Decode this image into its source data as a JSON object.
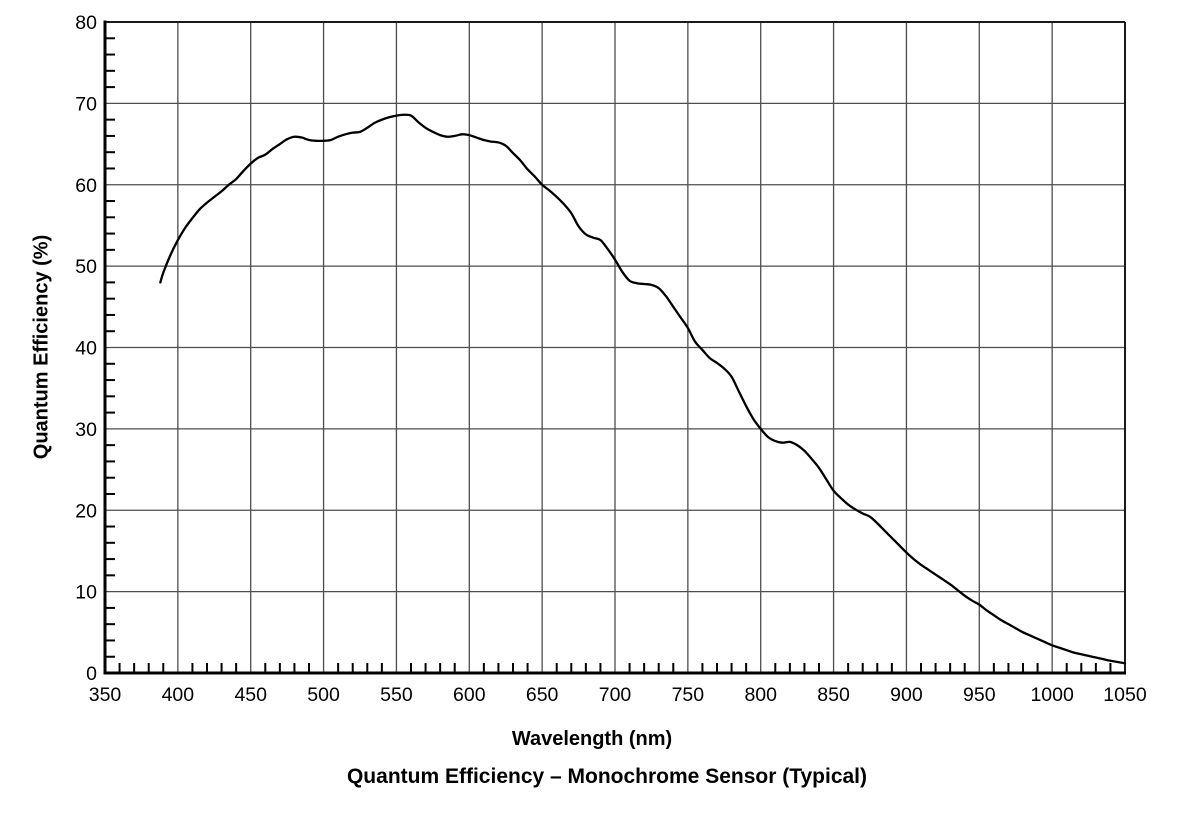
{
  "figure": {
    "background": "#ffffff"
  },
  "chart_data": {
    "type": "line",
    "title": "Quantum Efficiency – Monochrome Sensor (Typical)",
    "xlabel": "Wavelength (nm)",
    "ylabel": "Quantum Efficiency (%)",
    "xlim": [
      350,
      1050
    ],
    "ylim": [
      0,
      80
    ],
    "x_ticks": [
      350,
      400,
      450,
      500,
      550,
      600,
      650,
      700,
      750,
      800,
      850,
      900,
      950,
      1000,
      1050
    ],
    "y_ticks": [
      0,
      10,
      20,
      30,
      40,
      50,
      60,
      70,
      80
    ],
    "x_minor_step": 10,
    "y_minor_step": 2,
    "grid": true,
    "legend": "none",
    "colors": {
      "line": "#000000",
      "grid": "#4d4d4d",
      "axis": "#000000",
      "text": "#000000",
      "background": "#ffffff"
    },
    "series": [
      {
        "name": "Monochrome sensor quantum efficiency",
        "x": [
          388,
          390,
          395,
          400,
          405,
          410,
          415,
          420,
          425,
          430,
          435,
          440,
          445,
          450,
          455,
          460,
          465,
          470,
          475,
          480,
          485,
          490,
          495,
          500,
          505,
          510,
          515,
          520,
          525,
          530,
          535,
          540,
          545,
          550,
          555,
          560,
          565,
          570,
          575,
          580,
          585,
          590,
          595,
          600,
          605,
          610,
          615,
          620,
          625,
          630,
          635,
          640,
          645,
          650,
          655,
          660,
          665,
          670,
          675,
          680,
          685,
          690,
          695,
          700,
          705,
          710,
          715,
          720,
          725,
          730,
          735,
          740,
          745,
          750,
          755,
          760,
          765,
          770,
          775,
          780,
          785,
          790,
          795,
          800,
          805,
          810,
          815,
          820,
          825,
          830,
          835,
          840,
          845,
          850,
          855,
          860,
          865,
          870,
          875,
          880,
          885,
          890,
          895,
          900,
          905,
          910,
          915,
          920,
          925,
          930,
          935,
          940,
          945,
          950,
          955,
          960,
          965,
          970,
          975,
          980,
          985,
          990,
          995,
          1000,
          1005,
          1010,
          1015,
          1020,
          1025,
          1030,
          1035,
          1040,
          1045,
          1050
        ],
        "y": [
          48.0,
          49.2,
          51.4,
          53.2,
          54.7,
          55.9,
          57.0,
          57.8,
          58.5,
          59.2,
          60.0,
          60.7,
          61.7,
          62.6,
          63.3,
          63.7,
          64.4,
          65.0,
          65.6,
          65.9,
          65.8,
          65.5,
          65.4,
          65.4,
          65.5,
          65.9,
          66.2,
          66.4,
          66.5,
          67.0,
          67.6,
          68.0,
          68.3,
          68.5,
          68.6,
          68.5,
          67.7,
          67.0,
          66.5,
          66.1,
          65.9,
          66.0,
          66.2,
          66.1,
          65.8,
          65.5,
          65.3,
          65.2,
          64.8,
          63.9,
          63.0,
          61.9,
          61.0,
          60.0,
          59.3,
          58.5,
          57.6,
          56.5,
          54.9,
          53.9,
          53.5,
          53.2,
          52.1,
          50.8,
          49.3,
          48.2,
          47.9,
          47.8,
          47.7,
          47.3,
          46.3,
          45.0,
          43.7,
          42.4,
          40.7,
          39.7,
          38.7,
          38.1,
          37.4,
          36.4,
          34.6,
          32.8,
          31.2,
          30.0,
          29.0,
          28.5,
          28.3,
          28.4,
          28.0,
          27.3,
          26.3,
          25.2,
          23.8,
          22.4,
          21.5,
          20.7,
          20.1,
          19.6,
          19.2,
          18.4,
          17.5,
          16.6,
          15.7,
          14.8,
          14.0,
          13.3,
          12.7,
          12.1,
          11.5,
          10.9,
          10.2,
          9.5,
          8.9,
          8.4,
          7.7,
          7.1,
          6.5,
          6.0,
          5.5,
          5.0,
          4.6,
          4.2,
          3.8,
          3.4,
          3.1,
          2.8,
          2.5,
          2.3,
          2.1,
          1.9,
          1.7,
          1.5,
          1.35,
          1.2
        ]
      }
    ]
  }
}
